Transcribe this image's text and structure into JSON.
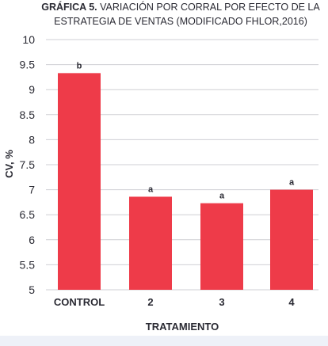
{
  "chart_data": {
    "type": "bar",
    "title_prefix": "GRÁFICA 5.",
    "title_line1_rest": " VARIACIÓN POR CORRAL POR EFECTO DE LA",
    "title_line2": "ESTRATEGIA DE VENTAS (MODIFICADO FHLOR,2016)",
    "xlabel": "TRATAMIENTO",
    "ylabel": "CV, %",
    "categories": [
      "CONTROL",
      "2",
      "3",
      "4"
    ],
    "values": [
      9.33,
      6.86,
      6.73,
      7.0
    ],
    "significance": [
      "b",
      "a",
      "a",
      "a"
    ],
    "ylim": [
      5,
      10
    ],
    "yticks": [
      "5",
      "5.5",
      "6",
      "6.5",
      "7",
      "7.5",
      "8",
      "8.5",
      "9",
      "9.5",
      "10"
    ],
    "bar_color": "#ee3b49",
    "grid_color": "#cfcfd4",
    "grid": true,
    "legend": "none"
  }
}
